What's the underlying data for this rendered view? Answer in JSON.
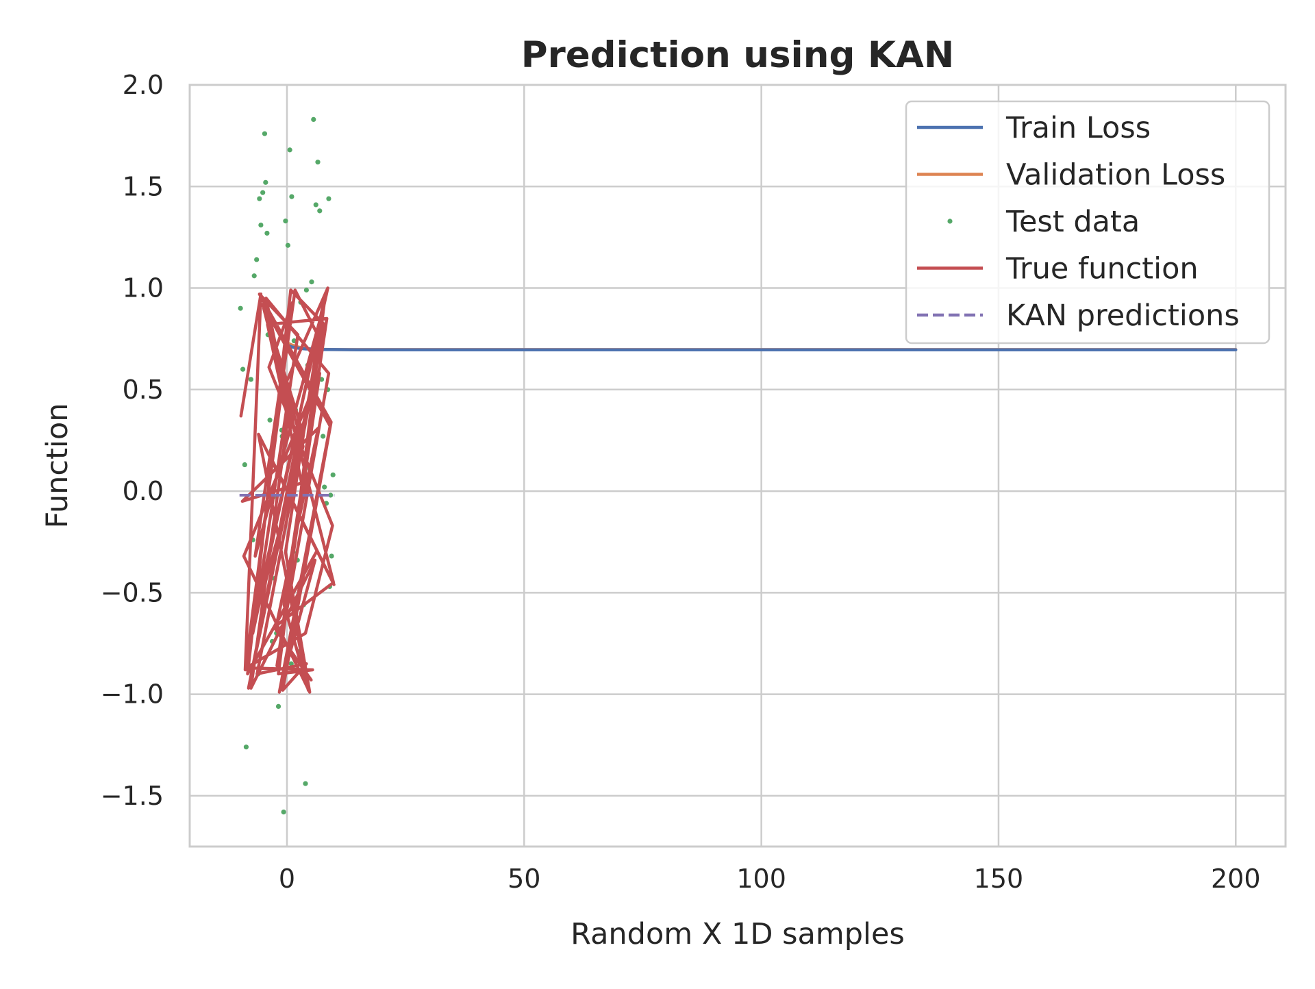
{
  "chart_data": {
    "type": "line",
    "title": "Prediction using KAN",
    "xlabel": "Random X 1D samples",
    "ylabel": "Function",
    "xlim": [
      -20.5,
      210.5
    ],
    "ylim": [
      -1.75,
      2.0
    ],
    "x_ticks": [
      0,
      50,
      100,
      150,
      200
    ],
    "x_tick_labels": [
      "0",
      "50",
      "100",
      "150",
      "200"
    ],
    "y_ticks": [
      2.0,
      1.5,
      1.0,
      0.5,
      0.0,
      -0.5,
      -1.0,
      -1.5
    ],
    "y_tick_labels": [
      "2.0",
      "1.5",
      "1.0",
      "0.5",
      "0.0",
      "−0.5",
      "−1.0",
      "−1.5"
    ],
    "grid": true,
    "legend_position": "top-right",
    "legend": [
      {
        "label": "Train Loss",
        "color": "#4c72b0",
        "style": "solid"
      },
      {
        "label": "Validation Loss",
        "color": "#dd8452",
        "style": "solid"
      },
      {
        "label": "Test data",
        "color": "#55a868",
        "style": "dot"
      },
      {
        "label": "True function",
        "color": "#c44e52",
        "style": "solid"
      },
      {
        "label": "KAN predictions",
        "color": "#8172b3",
        "style": "dashed"
      }
    ],
    "series": [
      {
        "name": "Train Loss",
        "color": "#4c72b0",
        "kind": "line",
        "x": [
          0,
          1,
          2,
          3,
          4,
          5,
          6,
          8,
          10,
          15,
          20,
          50,
          100,
          150,
          200
        ],
        "y": [
          0.72,
          0.71,
          0.705,
          0.702,
          0.7,
          0.7,
          0.698,
          0.697,
          0.697,
          0.696,
          0.696,
          0.696,
          0.696,
          0.696,
          0.696
        ]
      },
      {
        "name": "Validation Loss",
        "color": "#dd8452",
        "kind": "line",
        "x": [
          0,
          1,
          2,
          3,
          4,
          5,
          6,
          8,
          10,
          15,
          20,
          50,
          100,
          150,
          200
        ],
        "y": [
          0.73,
          0.72,
          0.712,
          0.706,
          0.703,
          0.7,
          0.699,
          0.698,
          0.697,
          0.697,
          0.697,
          0.697,
          0.697,
          0.697,
          0.697
        ]
      },
      {
        "name": "Test data",
        "color": "#55a868",
        "kind": "scatter",
        "x": [
          -9.8,
          -9.3,
          -8.6,
          -8.1,
          -7.6,
          -6.9,
          -6.4,
          -5.8,
          -5.5,
          -5.1,
          -4.7,
          -4.5,
          -4.2,
          -3.9,
          -3.6,
          -3.3,
          -2.9,
          -2.6,
          -2.2,
          -1.8,
          -1.4,
          -1.0,
          -0.7,
          -0.3,
          0.2,
          0.6,
          1.0,
          1.5,
          1.8,
          2.2,
          2.6,
          3.1,
          3.5,
          3.9,
          4.4,
          4.8,
          5.2,
          5.6,
          6.1,
          6.5,
          6.9,
          7.3,
          7.6,
          7.9,
          8.3,
          8.6,
          9.0,
          9.4,
          9.7,
          -8.9,
          -7.2,
          -4.0,
          -1.1,
          0.9,
          2.9,
          5.0,
          7.1,
          8.8,
          -6.1,
          -3.1,
          1.3,
          4.1,
          6.7,
          9.2
        ],
        "y": [
          0.9,
          0.6,
          -1.26,
          -0.74,
          0.55,
          1.06,
          1.14,
          1.44,
          1.31,
          1.47,
          1.76,
          1.52,
          1.27,
          0.86,
          0.35,
          0.2,
          -0.03,
          -0.43,
          -0.7,
          -1.06,
          -0.19,
          0.27,
          -1.58,
          1.33,
          1.21,
          1.68,
          1.45,
          0.74,
          0.4,
          -0.34,
          -0.79,
          0.19,
          -0.56,
          -1.44,
          0.62,
          0.11,
          1.03,
          1.83,
          1.41,
          1.62,
          1.38,
          0.55,
          0.27,
          0.02,
          -0.06,
          0.5,
          -0.47,
          -0.32,
          0.08,
          0.13,
          -0.24,
          0.77,
          0.3,
          -0.85,
          0.93,
          0.47,
          0.68,
          1.44,
          -0.9,
          -0.74,
          -0.3,
          0.99,
          0.43,
          -0.02
        ]
      },
      {
        "name": "True function",
        "color": "#c44e52",
        "kind": "line",
        "x": [
          -9.7,
          -5.5,
          -8.8,
          -1.2,
          8.6,
          -7.9,
          3.4,
          -4.9,
          9.8,
          -2.7,
          6.2,
          -8.3,
          0.8,
          7.9,
          -6.3,
          4.1,
          -0.9,
          9.3,
          -5.8,
          2.3,
          -7.2,
          8.1,
          -1.8,
          5.4,
          -8.6,
          3.9,
          9.6,
          -3.8,
          1.2,
          -6.7,
          7.4,
          -0.3,
          4.8,
          -9.1,
          6.9,
          -2.1,
          8.8,
          -4.4,
          0.4,
          -7.6,
          5.9,
          -1.6,
          9.1,
          -5.1,
          2.8,
          -8.1,
          7.1,
          1.7,
          -3.3,
          9.9,
          -6.0,
          4.5,
          -0.6,
          8.4,
          -4.1,
          3.1,
          -9.4,
          6.6,
          -2.4,
          5.1
        ],
        "y": [
          0.37,
          0.97,
          -0.88,
          0.48,
          1.0,
          -0.73,
          0.22,
          0.9,
          -0.45,
          -0.67,
          -0.3,
          -0.9,
          0.99,
          0.82,
          -0.9,
          -0.85,
          -0.98,
          0.34,
          0.97,
          0.77,
          -0.7,
          0.97,
          -0.9,
          -0.88,
          -0.87,
          -0.7,
          -0.17,
          0.61,
          0.93,
          -0.32,
          0.88,
          -0.3,
          -0.99,
          -0.32,
          0.58,
          -0.86,
          0.58,
          0.95,
          0.39,
          -0.97,
          -0.34,
          -0.99,
          0.32,
          0.92,
          0.33,
          -0.97,
          0.74,
          0.99,
          0.16,
          -0.46,
          0.28,
          -0.98,
          -0.56,
          0.85,
          0.82,
          0.04,
          -0.05,
          0.31,
          -0.68,
          -0.93
        ]
      },
      {
        "name": "KAN predictions",
        "color": "#8172b3",
        "kind": "dashed",
        "x": [
          -10,
          -5,
          0,
          5,
          10
        ],
        "y": [
          -0.02,
          -0.02,
          -0.02,
          -0.02,
          -0.02
        ]
      }
    ]
  }
}
